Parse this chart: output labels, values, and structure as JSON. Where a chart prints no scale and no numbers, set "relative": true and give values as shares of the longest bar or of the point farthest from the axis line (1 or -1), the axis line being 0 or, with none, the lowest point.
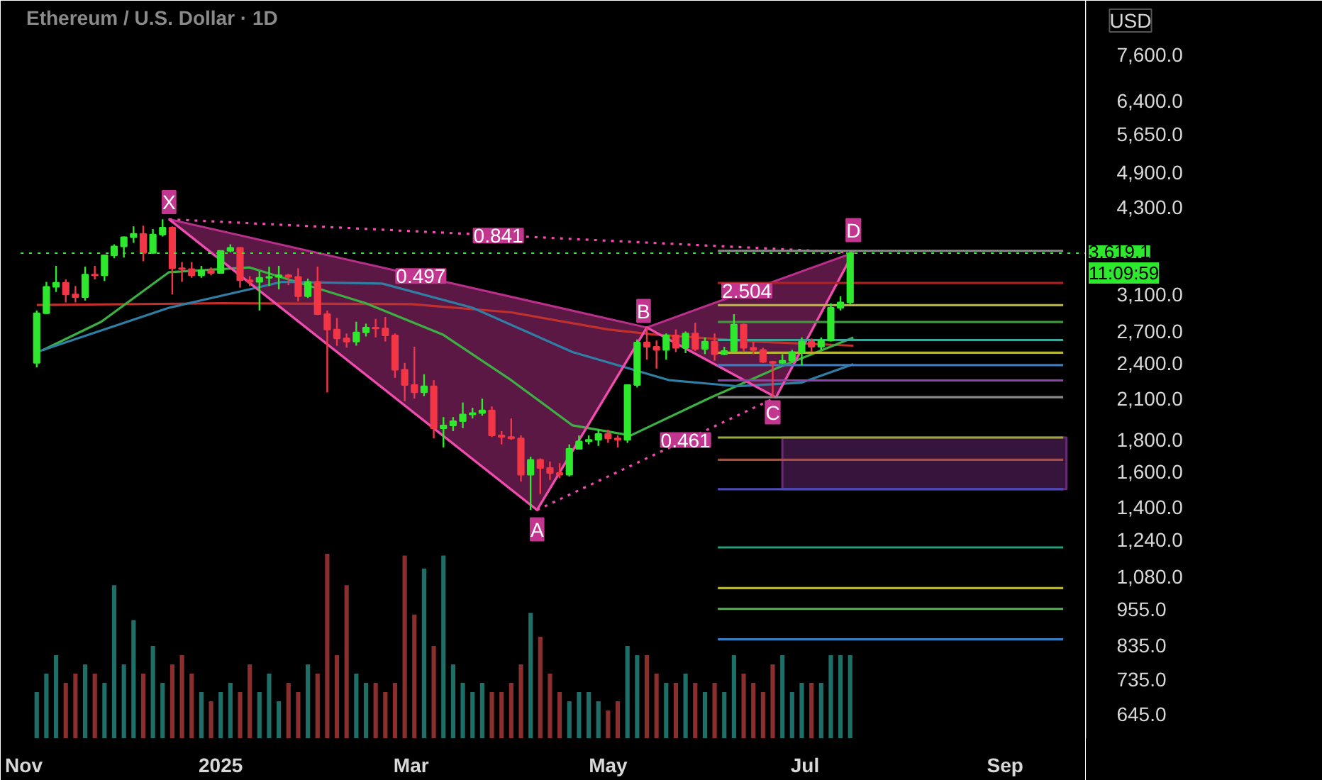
{
  "chart_data": [
    {
      "type": "candlestick",
      "title": "Ethereum / U.S. Dollar · 1D",
      "log": true,
      "grid": false,
      "xlim": [
        "2024-10-31",
        "2025-09-26"
      ],
      "ylim": [
        590,
        9300
      ],
      "xticks": [
        {
          "value": "2024-11-01",
          "label": "Nov"
        },
        {
          "value": "2025-01-01",
          "label": "2025"
        },
        {
          "value": "2025-03-01",
          "label": "Mar"
        },
        {
          "value": "2025-05-01",
          "label": "May"
        },
        {
          "value": "2025-07-01",
          "label": "Jul"
        },
        {
          "value": "2025-09-01",
          "label": "Sep"
        }
      ],
      "yticks": [
        {
          "value": 645,
          "label": "645.0"
        },
        {
          "value": 735,
          "label": "735.0"
        },
        {
          "value": 835,
          "label": "835.0"
        },
        {
          "value": 955,
          "label": "955.0"
        },
        {
          "value": 1080,
          "label": "1,080.0"
        },
        {
          "value": 1240,
          "label": "1,240.0"
        },
        {
          "value": 1400,
          "label": "1,400.0"
        },
        {
          "value": 1600,
          "label": "1,600.0"
        },
        {
          "value": 1800,
          "label": "1,800.0"
        },
        {
          "value": 2100,
          "label": "2,100.0"
        },
        {
          "value": 2400,
          "label": "2,400.0"
        },
        {
          "value": 2700,
          "label": "2,700.0"
        },
        {
          "value": 3100,
          "label": "3,100.0"
        },
        {
          "value": 4300,
          "label": "4,300.0"
        },
        {
          "value": 4900,
          "label": "4,900.0"
        },
        {
          "value": 5650,
          "label": "5,650.0"
        },
        {
          "value": 6400,
          "label": "6,400.0"
        },
        {
          "value": 7600,
          "label": "7,600.0"
        }
      ],
      "colors": [
        "#2ee82e",
        "#2ee82e",
        "#2ee82e",
        "#f23645",
        "#f23645",
        "#2ee82e",
        "#f23645",
        "#2ee82e",
        "#2ee82e",
        "#2ee82e",
        "#2ee82e",
        "#f23645",
        "#2ee82e",
        "#2ee82e",
        "#f23645",
        "#f23645",
        "#f23645",
        "#2ee82e",
        "#f23645",
        "#2ee82e",
        "#2ee82e",
        "#f23645",
        "#f23645",
        "#2ee82e",
        "#2ee82e",
        "#2ee82e",
        "#f23645",
        "#f23645",
        "#2ee82e",
        "#f23645",
        "#f23645",
        "#f23645",
        "#f23645",
        "#2ee82e",
        "#2ee82e",
        "#f23645",
        "#f23645",
        "#f23645",
        "#f23645",
        "#f23645",
        "#2ee82e",
        "#f23645",
        "#2ee82e",
        "#2ee82e",
        "#2ee82e",
        "#2ee82e",
        "#2ee82e",
        "#f23645",
        "#f23645",
        "#f23645",
        "#f23645",
        "#2ee82e",
        "#f23645",
        "#f23645",
        "#f23645",
        "#2ee82e",
        "#2ee82e",
        "#2ee82e",
        "#2ee82e",
        "#f23645",
        "#f23645",
        "#2ee82e",
        "#2ee82e",
        "#f23645",
        "#f23645",
        "#2ee82e",
        "#f23645",
        "#2ee82e",
        "#f23645",
        "#2ee82e",
        "#f23645",
        "#2ee82e",
        "#2ee82e",
        "#f23645",
        "#f23645",
        "#f23645",
        "#f23645",
        "#2ee82e",
        "#2ee82e",
        "#2ee82e",
        "#f23645",
        "#2ee82e",
        "#2ee82e",
        "#2ee82e",
        "#2ee82e"
      ],
      "x": [
        "2024-11-05",
        "2024-11-08",
        "2024-11-11",
        "2024-11-14",
        "2024-11-17",
        "2024-11-20",
        "2024-11-23",
        "2024-11-26",
        "2024-11-29",
        "2024-12-02",
        "2024-12-05",
        "2024-12-08",
        "2024-12-11",
        "2024-12-14",
        "2024-12-17",
        "2024-12-20",
        "2024-12-23",
        "2024-12-26",
        "2024-12-29",
        "2025-01-01",
        "2025-01-04",
        "2025-01-07",
        "2025-01-10",
        "2025-01-13",
        "2025-01-16",
        "2025-01-19",
        "2025-01-22",
        "2025-01-25",
        "2025-01-28",
        "2025-01-31",
        "2025-02-03",
        "2025-02-06",
        "2025-02-09",
        "2025-02-12",
        "2025-02-15",
        "2025-02-18",
        "2025-02-21",
        "2025-02-24",
        "2025-02-27",
        "2025-03-02",
        "2025-03-05",
        "2025-03-08",
        "2025-03-11",
        "2025-03-14",
        "2025-03-17",
        "2025-03-20",
        "2025-03-23",
        "2025-03-26",
        "2025-03-29",
        "2025-04-01",
        "2025-04-04",
        "2025-04-07",
        "2025-04-10",
        "2025-04-13",
        "2025-04-16",
        "2025-04-19",
        "2025-04-22",
        "2025-04-25",
        "2025-04-28",
        "2025-05-01",
        "2025-05-04",
        "2025-05-07",
        "2025-05-10",
        "2025-05-13",
        "2025-05-16",
        "2025-05-19",
        "2025-05-22",
        "2025-05-25",
        "2025-05-28",
        "2025-05-31",
        "2025-06-03",
        "2025-06-06",
        "2025-06-09",
        "2025-06-12",
        "2025-06-15",
        "2025-06-18",
        "2025-06-21",
        "2025-06-24",
        "2025-06-27",
        "2025-06-30",
        "2025-07-03",
        "2025-07-06",
        "2025-07-09",
        "2025-07-12",
        "2025-07-15"
      ],
      "ohlc": [
        [
          2400,
          2920,
          2360,
          2890
        ],
        [
          2890,
          3250,
          2880,
          3190
        ],
        [
          3190,
          3450,
          3130,
          3240
        ],
        [
          3240,
          3280,
          3010,
          3100
        ],
        [
          3100,
          3200,
          3010,
          3070
        ],
        [
          3070,
          3440,
          3030,
          3340
        ],
        [
          3340,
          3450,
          3280,
          3330
        ],
        [
          3330,
          3590,
          3260,
          3590
        ],
        [
          3590,
          3740,
          3550,
          3710
        ],
        [
          3710,
          3850,
          3560,
          3840
        ],
        [
          3840,
          4000,
          3760,
          3890
        ],
        [
          3890,
          4010,
          3510,
          3620
        ],
        [
          3620,
          3960,
          3610,
          3880
        ],
        [
          3880,
          4107,
          3850,
          3980
        ],
        [
          3980,
          4000,
          3100,
          3420
        ],
        [
          3420,
          3500,
          3250,
          3410
        ],
        [
          3410,
          3500,
          3300,
          3330
        ],
        [
          3330,
          3450,
          3300,
          3390
        ],
        [
          3390,
          3430,
          3330,
          3360
        ],
        [
          3360,
          3650,
          3350,
          3650
        ],
        [
          3650,
          3740,
          3630,
          3690
        ],
        [
          3690,
          3700,
          3180,
          3270
        ],
        [
          3270,
          3320,
          3200,
          3250
        ],
        [
          3250,
          3380,
          2920,
          3300
        ],
        [
          3300,
          3440,
          3200,
          3310
        ],
        [
          3310,
          3450,
          3160,
          3330
        ],
        [
          3330,
          3350,
          3210,
          3310
        ],
        [
          3310,
          3420,
          3020,
          3080
        ],
        [
          3080,
          3290,
          3060,
          3250
        ],
        [
          3250,
          3440,
          2870,
          2880
        ],
        [
          2880,
          2920,
          2150,
          2720
        ],
        [
          2720,
          2840,
          2560,
          2630
        ],
        [
          2630,
          2680,
          2540,
          2600
        ],
        [
          2600,
          2800,
          2560,
          2690
        ],
        [
          2690,
          2780,
          2650,
          2740
        ],
        [
          2740,
          2830,
          2640,
          2730
        ],
        [
          2730,
          2850,
          2600,
          2660
        ],
        [
          2660,
          2680,
          2270,
          2340
        ],
        [
          2340,
          2400,
          2080,
          2210
        ],
        [
          2210,
          2550,
          2100,
          2150
        ],
        [
          2150,
          2300,
          2120,
          2200
        ],
        [
          2200,
          2250,
          1810,
          1880
        ],
        [
          1880,
          1960,
          1750,
          1900
        ],
        [
          1900,
          1960,
          1860,
          1930
        ],
        [
          1930,
          2070,
          1880,
          1980
        ],
        [
          1980,
          2030,
          1950,
          1990
        ],
        [
          1990,
          2100,
          1970,
          2010
        ],
        [
          2010,
          2040,
          1820,
          1830
        ],
        [
          1830,
          1860,
          1770,
          1820
        ],
        [
          1820,
          1950,
          1800,
          1810
        ],
        [
          1810,
          1830,
          1540,
          1580
        ],
        [
          1580,
          1690,
          1385,
          1670
        ],
        [
          1670,
          1680,
          1470,
          1620
        ],
        [
          1620,
          1660,
          1550,
          1590
        ],
        [
          1590,
          1650,
          1560,
          1580
        ],
        [
          1580,
          1770,
          1570,
          1740
        ],
        [
          1740,
          1830,
          1740,
          1790
        ],
        [
          1790,
          1830,
          1770,
          1800
        ],
        [
          1800,
          1870,
          1760,
          1840
        ],
        [
          1840,
          1870,
          1780,
          1810
        ],
        [
          1810,
          1830,
          1750,
          1800
        ],
        [
          1800,
          2210,
          1780,
          2210
        ],
        [
          2210,
          2620,
          2190,
          2590
        ],
        [
          2590,
          2740,
          2430,
          2550
        ],
        [
          2550,
          2610,
          2350,
          2520
        ],
        [
          2520,
          2680,
          2430,
          2660
        ],
        [
          2660,
          2720,
          2500,
          2540
        ],
        [
          2540,
          2700,
          2490,
          2680
        ],
        [
          2680,
          2790,
          2510,
          2530
        ],
        [
          2530,
          2640,
          2480,
          2600
        ],
        [
          2600,
          2680,
          2420,
          2480
        ],
        [
          2480,
          2550,
          2470,
          2510
        ],
        [
          2510,
          2880,
          2500,
          2770
        ],
        [
          2770,
          2780,
          2500,
          2540
        ],
        [
          2540,
          2600,
          2480,
          2520
        ],
        [
          2520,
          2540,
          2400,
          2410
        ],
        [
          2410,
          2420,
          2110,
          2400
        ],
        [
          2400,
          2480,
          2390,
          2420
        ],
        [
          2420,
          2520,
          2400,
          2500
        ],
        [
          2500,
          2640,
          2380,
          2600
        ],
        [
          2600,
          2630,
          2500,
          2550
        ],
        [
          2550,
          2640,
          2520,
          2610
        ],
        [
          2610,
          3000,
          2600,
          2950
        ],
        [
          2950,
          3080,
          2920,
          3010
        ],
        [
          3010,
          3625,
          2990,
          3619.1
        ]
      ],
      "series": [
        {
          "type": "area",
          "color": "#b8308a",
          "x": [
            "2024-12-16",
            "2025-04-09",
            "2025-05-13"
          ],
          "values": [
            4107,
            1385,
            2740
          ]
        },
        {
          "type": "area",
          "color": "#b8308a",
          "x": [
            "2025-05-13",
            "2025-06-22",
            "2025-07-16"
          ],
          "values": [
            2740,
            2110,
            3625
          ]
        },
        {
          "type": "line",
          "color": "#c0302c",
          "line_style": "solid",
          "x": [
            "2024-11-05",
            "2025-01-01",
            "2025-03-01",
            "2025-04-01",
            "2025-05-01",
            "2025-05-15",
            "2025-06-15",
            "2025-07-16"
          ],
          "values": [
            2980,
            3000,
            2990,
            2900,
            2720,
            2670,
            2600,
            2560
          ]
        },
        {
          "type": "line",
          "color": "#3cb043",
          "line_style": "solid",
          "x": [
            "2024-11-07",
            "2024-11-25",
            "2024-12-16",
            "2025-01-10",
            "2025-02-15",
            "2025-03-11",
            "2025-04-01",
            "2025-04-20",
            "2025-05-08",
            "2025-06-01",
            "2025-06-22",
            "2025-07-16"
          ],
          "values": [
            2520,
            2800,
            3370,
            3430,
            3000,
            2665,
            2250,
            1900,
            1830,
            2100,
            2350,
            2640
          ]
        },
        {
          "type": "line",
          "color": "#2f7fa5",
          "line_style": "solid",
          "x": [
            "2024-11-05",
            "2024-12-16",
            "2025-01-20",
            "2025-02-20",
            "2025-03-20",
            "2025-04-20",
            "2025-05-20",
            "2025-06-10",
            "2025-06-30",
            "2025-07-16"
          ],
          "values": [
            2500,
            2950,
            3250,
            3230,
            2950,
            2500,
            2250,
            2200,
            2230,
            2390
          ]
        },
        {
          "type": "area",
          "color": "#6a2a78",
          "x": [
            "2025-06-24",
            "2025-09-20",
            "2025-09-20",
            "2025-06-24"
          ],
          "values": [
            1497,
            1497,
            1816,
            1816
          ]
        },
        {
          "type": "line",
          "color": "#f04cb0",
          "line_style": "solid",
          "x": [
            "2024-12-16",
            "2025-04-09",
            "2025-05-13",
            "2025-06-22",
            "2025-07-16"
          ],
          "values": [
            4107,
            1385,
            2740,
            2110,
            3625
          ]
        },
        {
          "type": "line",
          "color": "#f04cb0",
          "line_style": "dotted",
          "x": [
            "2024-12-16",
            "2025-07-16"
          ],
          "values": [
            4107,
            3625
          ]
        },
        {
          "type": "line",
          "color": "#f04cb0",
          "line_style": "dotted",
          "x": [
            "2025-04-09",
            "2025-06-22"
          ],
          "values": [
            1385,
            2110
          ]
        },
        {
          "type": "line",
          "color": "#8a8a8a",
          "line_style": "solid",
          "x": [
            "2025-06-04",
            "2025-09-19"
          ],
          "values": [
            3650,
            3650
          ]
        },
        {
          "type": "line",
          "color": "#b22222",
          "line_style": "solid",
          "x": [
            "2025-06-04",
            "2025-09-19"
          ],
          "values": [
            3237,
            3237
          ]
        },
        {
          "type": "line",
          "color": "#b5b531",
          "line_style": "solid",
          "x": [
            "2025-06-04",
            "2025-09-19"
          ],
          "values": [
            2978,
            2978
          ]
        },
        {
          "type": "line",
          "color": "#3a9a3a",
          "line_style": "solid",
          "x": [
            "2025-06-04",
            "2025-09-19"
          ],
          "values": [
            2797,
            2797
          ]
        },
        {
          "type": "line",
          "color": "#3aa69a",
          "line_style": "solid",
          "x": [
            "2025-06-04",
            "2025-09-19"
          ],
          "values": [
            2615,
            2615
          ]
        },
        {
          "type": "line",
          "color": "#b5b531",
          "line_style": "solid",
          "x": [
            "2025-06-04",
            "2025-09-19"
          ],
          "values": [
            2494,
            2494
          ]
        },
        {
          "type": "line",
          "color": "#3a7bbf",
          "line_style": "solid",
          "x": [
            "2025-06-04",
            "2025-09-19"
          ],
          "values": [
            2381,
            2381
          ]
        },
        {
          "type": "line",
          "color": "#8e44ad",
          "line_style": "solid",
          "x": [
            "2025-06-04",
            "2025-09-19"
          ],
          "values": [
            2248,
            2248
          ]
        },
        {
          "type": "line",
          "color": "#8a8a8a",
          "line_style": "solid",
          "x": [
            "2025-06-04",
            "2025-09-19"
          ],
          "values": [
            2112,
            2112
          ]
        },
        {
          "type": "line",
          "color": "#9aa83a",
          "line_style": "solid",
          "x": [
            "2025-06-04",
            "2025-09-19"
          ],
          "values": [
            1816,
            1816
          ]
        },
        {
          "type": "line",
          "color": "#b24a3a",
          "line_style": "solid",
          "x": [
            "2025-06-04",
            "2025-09-19"
          ],
          "values": [
            1671,
            1671
          ]
        },
        {
          "type": "line",
          "color": "#4a4ab8",
          "line_style": "solid",
          "x": [
            "2025-06-04",
            "2025-09-19"
          ],
          "values": [
            1497,
            1497
          ]
        },
        {
          "type": "line",
          "color": "#2a9a7a",
          "line_style": "solid",
          "x": [
            "2025-06-04",
            "2025-09-19"
          ],
          "values": [
            1204,
            1204
          ]
        },
        {
          "type": "line",
          "color": "#b5b531",
          "line_style": "solid",
          "x": [
            "2025-06-04",
            "2025-09-19"
          ],
          "values": [
            1034,
            1034
          ]
        },
        {
          "type": "line",
          "color": "#4aa84a",
          "line_style": "solid",
          "x": [
            "2025-06-04",
            "2025-09-19"
          ],
          "values": [
            957,
            957
          ]
        },
        {
          "type": "line",
          "color": "#3a7bbf",
          "line_style": "solid",
          "x": [
            "2025-06-04",
            "2025-09-19"
          ],
          "values": [
            854,
            854
          ]
        }
      ],
      "ref_lines": [
        {
          "axis": "y",
          "value": 3619.1,
          "label": "3,619.1",
          "color": "#2ee82e",
          "line_style": "dotted"
        }
      ],
      "annotations": [
        "USD",
        "11:09:59",
        {
          "text": "X",
          "x": "2024-12-16",
          "y": 4380
        },
        {
          "text": "A",
          "x": "2025-04-09",
          "y": 1288
        },
        {
          "text": "B",
          "x": "2025-05-12",
          "y": 2915
        },
        {
          "text": "C",
          "x": "2025-06-21",
          "y": 1995
        },
        {
          "text": "D",
          "x": "2025-07-16",
          "y": 3944
        },
        {
          "text": "0.841",
          "x": "2025-03-28",
          "y": 3864
        },
        {
          "text": "0.497",
          "x": "2025-03-04",
          "y": 3323
        },
        {
          "text": "2.504",
          "x": "2025-06-13",
          "y": 3144
        },
        {
          "text": "0.461",
          "x": "2025-05-25",
          "y": 1799
        }
      ]
    },
    {
      "type": "bar",
      "relative": true,
      "categories": [
        null,
        null,
        null,
        null,
        null,
        null,
        null,
        null,
        null,
        null,
        null,
        null,
        null,
        null,
        null,
        null,
        null,
        null,
        null,
        null,
        null,
        null,
        null,
        null,
        null,
        null,
        null,
        null,
        null,
        null,
        null,
        null,
        null,
        null,
        null,
        null,
        null,
        null,
        null,
        null,
        null,
        null,
        null,
        null,
        null,
        null,
        null,
        null,
        null,
        null,
        null,
        null,
        null,
        null,
        null,
        null,
        null,
        null,
        null,
        null,
        null,
        null,
        null,
        null,
        null,
        null,
        null,
        null,
        null,
        null,
        null,
        null,
        null,
        null,
        null,
        null,
        null,
        null,
        null,
        null,
        null,
        null,
        null,
        null,
        null
      ],
      "values": [
        0.25,
        0.35,
        0.45,
        0.3,
        0.35,
        0.4,
        0.35,
        0.3,
        0.83,
        0.4,
        0.64,
        0.35,
        0.5,
        0.3,
        0.4,
        0.45,
        0.35,
        0.25,
        0.2,
        0.25,
        0.3,
        0.25,
        0.4,
        0.25,
        0.35,
        0.2,
        0.3,
        0.25,
        0.4,
        0.35,
        1.0,
        0.45,
        0.83,
        0.35,
        0.3,
        0.3,
        0.25,
        0.3,
        0.99,
        0.67,
        0.92,
        0.5,
        0.99,
        0.4,
        0.3,
        0.25,
        0.3,
        0.25,
        0.25,
        0.3,
        0.4,
        0.68,
        0.55,
        0.35,
        0.25,
        0.2,
        0.25,
        0.25,
        0.2,
        0.15,
        0.2,
        0.5,
        0.45,
        0.45,
        0.35,
        0.3,
        0.3,
        0.35,
        0.3,
        0.25,
        0.3,
        0.25,
        0.45,
        0.35,
        0.3,
        0.25,
        0.4,
        0.45,
        0.25,
        0.3,
        0.3,
        0.3,
        0.45,
        0.45,
        0.45
      ],
      "colors": [
        "#1e6f68",
        "#1e6f68",
        "#1e6f68",
        "#8b2e2e",
        "#8b2e2e",
        "#1e6f68",
        "#8b2e2e",
        "#1e6f68",
        "#1e6f68",
        "#1e6f68",
        "#1e6f68",
        "#8b2e2e",
        "#1e6f68",
        "#1e6f68",
        "#8b2e2e",
        "#8b2e2e",
        "#8b2e2e",
        "#1e6f68",
        "#8b2e2e",
        "#1e6f68",
        "#1e6f68",
        "#8b2e2e",
        "#8b2e2e",
        "#1e6f68",
        "#1e6f68",
        "#1e6f68",
        "#8b2e2e",
        "#8b2e2e",
        "#1e6f68",
        "#8b2e2e",
        "#8b2e2e",
        "#8b2e2e",
        "#8b2e2e",
        "#1e6f68",
        "#1e6f68",
        "#8b2e2e",
        "#8b2e2e",
        "#8b2e2e",
        "#8b2e2e",
        "#8b2e2e",
        "#1e6f68",
        "#8b2e2e",
        "#1e6f68",
        "#1e6f68",
        "#1e6f68",
        "#1e6f68",
        "#1e6f68",
        "#8b2e2e",
        "#8b2e2e",
        "#8b2e2e",
        "#8b2e2e",
        "#1e6f68",
        "#8b2e2e",
        "#8b2e2e",
        "#8b2e2e",
        "#1e6f68",
        "#1e6f68",
        "#1e6f68",
        "#1e6f68",
        "#8b2e2e",
        "#8b2e2e",
        "#1e6f68",
        "#1e6f68",
        "#8b2e2e",
        "#8b2e2e",
        "#1e6f68",
        "#8b2e2e",
        "#1e6f68",
        "#8b2e2e",
        "#1e6f68",
        "#8b2e2e",
        "#1e6f68",
        "#1e6f68",
        "#8b2e2e",
        "#8b2e2e",
        "#8b2e2e",
        "#8b2e2e",
        "#1e6f68",
        "#1e6f68",
        "#1e6f68",
        "#8b2e2e",
        "#1e6f68",
        "#1e6f68",
        "#1e6f68",
        "#1e6f68"
      ]
    }
  ]
}
